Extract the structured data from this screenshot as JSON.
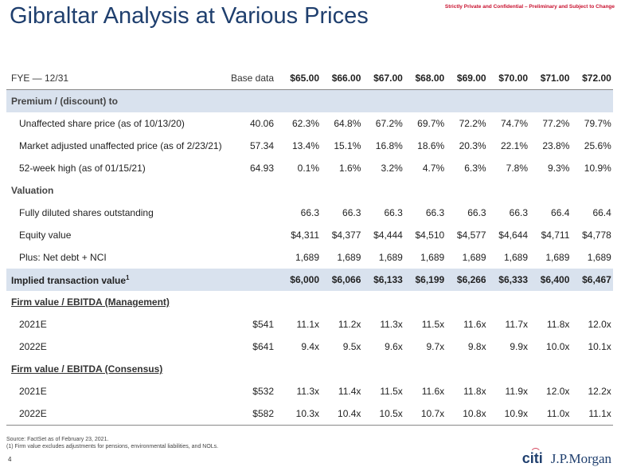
{
  "header": {
    "title": "Gibraltar Analysis at Various Prices",
    "confidential": "Strictly Private and Confidential – Preliminary and Subject to Change"
  },
  "table": {
    "col_label": "FYE — 12/31",
    "base_label": "Base data",
    "prices": [
      "$65.00",
      "$66.00",
      "$67.00",
      "$68.00",
      "$69.00",
      "$70.00",
      "$71.00",
      "$72.00"
    ],
    "premium_title": "Premium / (discount) to",
    "premium_rows": [
      {
        "label": "Unaffected share price (as of 10/13/20)",
        "base": "40.06",
        "values": [
          "62.3%",
          "64.8%",
          "67.2%",
          "69.7%",
          "72.2%",
          "74.7%",
          "77.2%",
          "79.7%"
        ]
      },
      {
        "label": "Market adjusted unaffected price (as of 2/23/21)",
        "base": "57.34",
        "values": [
          "13.4%",
          "15.1%",
          "16.8%",
          "18.6%",
          "20.3%",
          "22.1%",
          "23.8%",
          "25.6%"
        ]
      },
      {
        "label": "52-week high (as of 01/15/21)",
        "base": "64.93",
        "values": [
          "0.1%",
          "1.6%",
          "3.2%",
          "4.7%",
          "6.3%",
          "7.8%",
          "9.3%",
          "10.9%"
        ]
      }
    ],
    "valuation_title": "Valuation",
    "valuation_rows": [
      {
        "label": "Fully diluted shares outstanding",
        "base": "",
        "values": [
          "66.3",
          "66.3",
          "66.3",
          "66.3",
          "66.3",
          "66.3",
          "66.4",
          "66.4"
        ]
      },
      {
        "label": "Equity value",
        "base": "",
        "values": [
          "$4,311",
          "$4,377",
          "$4,444",
          "$4,510",
          "$4,577",
          "$4,644",
          "$4,711",
          "$4,778"
        ]
      },
      {
        "label": "Plus: Net debt + NCI",
        "base": "",
        "values": [
          "1,689",
          "1,689",
          "1,689",
          "1,689",
          "1,689",
          "1,689",
          "1,689",
          "1,689"
        ]
      }
    ],
    "implied": {
      "label": "Implied transaction value",
      "sup": "1",
      "values": [
        "$6,000",
        "$6,066",
        "$6,133",
        "$6,199",
        "$6,266",
        "$6,333",
        "$6,400",
        "$6,467"
      ]
    },
    "mgmt_title": "Firm value / EBITDA (Management)",
    "mgmt_rows": [
      {
        "label": "2021E",
        "base": "$541",
        "values": [
          "11.1x",
          "11.2x",
          "11.3x",
          "11.5x",
          "11.6x",
          "11.7x",
          "11.8x",
          "12.0x"
        ]
      },
      {
        "label": "2022E",
        "base": "$641",
        "values": [
          "9.4x",
          "9.5x",
          "9.6x",
          "9.7x",
          "9.8x",
          "9.9x",
          "10.0x",
          "10.1x"
        ]
      }
    ],
    "cons_title": "Firm value / EBITDA (Consensus)",
    "cons_rows": [
      {
        "label": "2021E",
        "base": "$532",
        "values": [
          "11.3x",
          "11.4x",
          "11.5x",
          "11.6x",
          "11.8x",
          "11.9x",
          "12.0x",
          "12.2x"
        ]
      },
      {
        "label": "2022E",
        "base": "$582",
        "values": [
          "10.3x",
          "10.4x",
          "10.5x",
          "10.7x",
          "10.8x",
          "10.9x",
          "11.0x",
          "11.1x"
        ]
      }
    ]
  },
  "footer": {
    "source": "Source: FactSet as of February 23, 2021.",
    "note": "(1) Firm value excludes adjustments for pensions, environmental liabilities, and NOLs.",
    "page": "4",
    "logo_citi": "citi",
    "logo_jpm": "J.P.Morgan"
  }
}
